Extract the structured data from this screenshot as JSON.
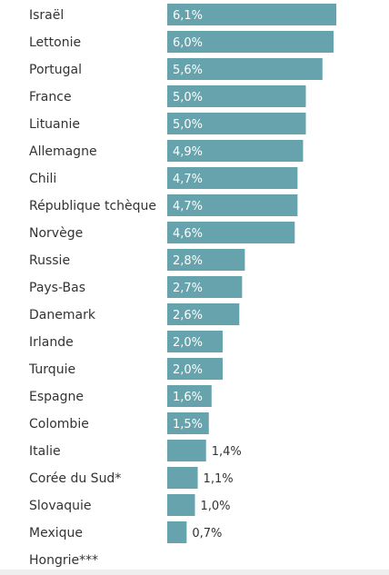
{
  "colors": {
    "bar": "#67a3ad",
    "text": "#333333",
    "label_inside": "#ffffff"
  },
  "chart_data": {
    "type": "bar",
    "orientation": "horizontal",
    "title": "",
    "xlabel": "",
    "ylabel": "",
    "grid": false,
    "legend": "none",
    "xlim": [
      0,
      6.2
    ],
    "categories": [
      "Israël",
      "Lettonie",
      "Portugal",
      "France",
      "Lituanie",
      "Allemagne",
      "Chili",
      "République tchèque",
      "Norvège",
      "Russie",
      "Pays-Bas",
      "Danemark",
      "Irlande",
      "Turquie",
      "Espagne",
      "Colombie",
      "Italie",
      "Corée du Sud*",
      "Slovaquie",
      "Mexique",
      "Hongrie***"
    ],
    "values": [
      6.1,
      6.0,
      5.6,
      5.0,
      5.0,
      4.9,
      4.7,
      4.7,
      4.6,
      2.8,
      2.7,
      2.6,
      2.0,
      2.0,
      1.6,
      1.5,
      1.4,
      1.1,
      1.0,
      0.7,
      null
    ],
    "value_labels": [
      "6,1%",
      "6,0%",
      "5,6%",
      "5,0%",
      "5,0%",
      "4,9%",
      "4,7%",
      "4,7%",
      "4,6%",
      "2,8%",
      "2,7%",
      "2,6%",
      "2,0%",
      "2,0%",
      "1,6%",
      "1,5%",
      "1,4%",
      "1,1%",
      "1,0%",
      "0,7%",
      ""
    ]
  }
}
